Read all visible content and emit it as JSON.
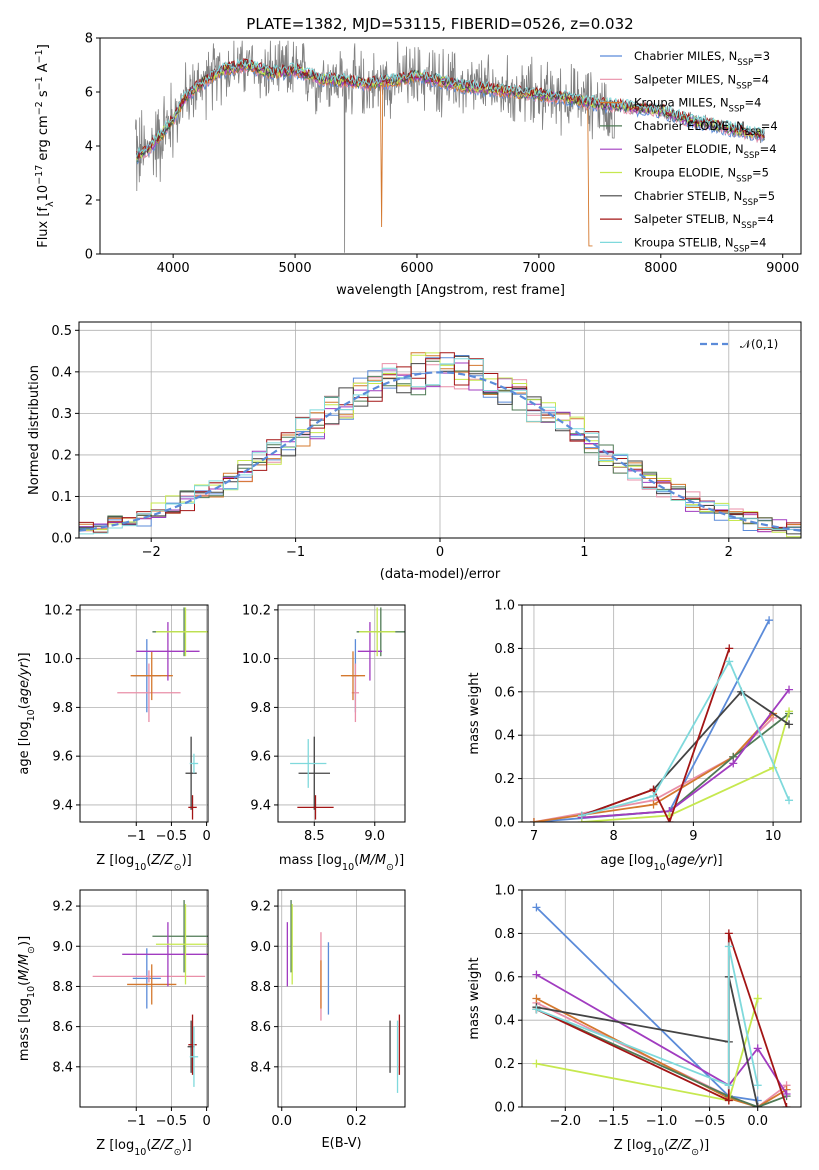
{
  "title": "PLATE=1382, MJD=53115, FIBERID=0526, z=0.032",
  "models": [
    {
      "name": "Chabrier MILES, N",
      "sub": "SSP",
      "n": "=3",
      "color": "#5b8bd9"
    },
    {
      "name": "Salpeter MILES, N",
      "sub": "SSP",
      "n": "=4",
      "color": "#e98fa8"
    },
    {
      "name": "Kroupa MILES, N",
      "sub": "SSP",
      "n": "=4",
      "color": "#d4782e"
    },
    {
      "name": "Chabrier ELODIE, N",
      "sub": "SSP",
      "n": "=4",
      "color": "#4f7a55"
    },
    {
      "name": "Salpeter ELODIE, N",
      "sub": "SSP",
      "n": "=4",
      "color": "#a13cc0"
    },
    {
      "name": "Kroupa ELODIE, N",
      "sub": "SSP",
      "n": "=5",
      "color": "#c6e84f"
    },
    {
      "name": "Chabrier STELIB, N",
      "sub": "SSP",
      "n": "=5",
      "color": "#444444"
    },
    {
      "name": "Salpeter STELIB, N",
      "sub": "SSP",
      "n": "=4",
      "color": "#a31515"
    },
    {
      "name": "Kroupa STELIB, N",
      "sub": "SSP",
      "n": "=4",
      "color": "#7fd9dc"
    }
  ],
  "chart_data": [
    {
      "id": "spectrum",
      "type": "line",
      "xlabel": "wavelength [Angstrom, rest frame]",
      "ylabel": "Flux [f_λ10^-17 erg cm^-2 s^-1 A^-1]",
      "xlim": [
        3400,
        9150
      ],
      "ylim": [
        0,
        8
      ],
      "xticks": [
        4000,
        5000,
        6000,
        7000,
        8000,
        9000
      ],
      "yticks": [
        0,
        2,
        4,
        6,
        8
      ],
      "data_color": "#808080",
      "continuum": [
        [
          3700,
          3.6
        ],
        [
          3800,
          3.9
        ],
        [
          3900,
          4.4
        ],
        [
          4000,
          5.0
        ],
        [
          4100,
          5.8
        ],
        [
          4200,
          6.2
        ],
        [
          4400,
          6.8
        ],
        [
          4600,
          7.0
        ],
        [
          4800,
          6.7
        ],
        [
          5000,
          6.8
        ],
        [
          5200,
          6.5
        ],
        [
          5400,
          6.4
        ],
        [
          5600,
          6.3
        ],
        [
          5800,
          6.4
        ],
        [
          6000,
          6.6
        ],
        [
          6200,
          6.4
        ],
        [
          6400,
          6.2
        ],
        [
          6600,
          6.1
        ],
        [
          6800,
          6.0
        ],
        [
          7000,
          5.9
        ],
        [
          7200,
          5.8
        ],
        [
          7400,
          5.6
        ],
        [
          7600,
          5.5
        ],
        [
          7800,
          5.4
        ],
        [
          8000,
          5.3
        ],
        [
          8200,
          5.0
        ],
        [
          8400,
          4.8
        ],
        [
          8600,
          4.6
        ],
        [
          8800,
          4.4
        ]
      ]
    },
    {
      "id": "residuals",
      "type": "histogram",
      "xlabel": "(data-model)/error",
      "ylabel": "Normed distribution",
      "xlim": [
        -2.5,
        2.5
      ],
      "ylim": [
        0,
        0.52
      ],
      "xticks": [
        -2,
        -1,
        0,
        1,
        2
      ],
      "yticks": [
        0.0,
        0.1,
        0.2,
        0.3,
        0.4,
        0.5
      ],
      "legend": "𝒩(0,1)",
      "gaussian_color": "#5b8bd9"
    },
    {
      "id": "age-vs-Z",
      "type": "errorbar",
      "xlabel": "Z [log10(Z/Z⊙)]",
      "ylabel": "age  [log10(age/yr)]",
      "xlim": [
        -1.8,
        0.02
      ],
      "ylim": [
        9.33,
        10.22
      ],
      "xticks": [
        -1,
        -0.5,
        0
      ],
      "yticks": [
        9.4,
        9.6,
        9.8,
        10.0,
        10.2
      ],
      "points": [
        {
          "m": 0,
          "x": -0.85,
          "y": 9.93,
          "xe": 0.2,
          "ye": 0.15
        },
        {
          "m": 1,
          "x": -0.82,
          "y": 9.86,
          "xe": 0.45,
          "ye": 0.12
        },
        {
          "m": 2,
          "x": -0.78,
          "y": 9.93,
          "xe": 0.3,
          "ye": 0.1
        },
        {
          "m": 3,
          "x": -0.32,
          "y": 10.11,
          "xe": 0.45,
          "ye": 0.1
        },
        {
          "m": 4,
          "x": -0.55,
          "y": 10.03,
          "xe": 0.45,
          "ye": 0.12
        },
        {
          "m": 5,
          "x": -0.3,
          "y": 10.11,
          "xe": 0.42,
          "ye": 0.1
        },
        {
          "m": 6,
          "x": -0.22,
          "y": 9.53,
          "xe": 0.08,
          "ye": 0.15
        },
        {
          "m": 7,
          "x": -0.2,
          "y": 9.39,
          "xe": 0.06,
          "ye": 0.05
        },
        {
          "m": 8,
          "x": -0.18,
          "y": 9.57,
          "xe": 0.06,
          "ye": 0.04
        }
      ]
    },
    {
      "id": "age-vs-mass",
      "type": "errorbar",
      "xlabel": "mass [log10(M/M⊙)]",
      "ylabel": "",
      "xlim": [
        8.2,
        9.25
      ],
      "ylim": [
        9.33,
        10.22
      ],
      "xticks": [
        8.5,
        9.0
      ],
      "yticks": [
        9.4,
        9.6,
        9.8,
        10.0,
        10.2
      ],
      "points": [
        {
          "m": 0,
          "x": 8.84,
          "y": 9.93,
          "xe": 0.03,
          "ye": 0.15
        },
        {
          "m": 1,
          "x": 8.84,
          "y": 9.86,
          "xe": 0.03,
          "ye": 0.12
        },
        {
          "m": 2,
          "x": 8.82,
          "y": 9.93,
          "xe": 0.1,
          "ye": 0.1
        },
        {
          "m": 3,
          "x": 9.05,
          "y": 10.11,
          "xe": 0.2,
          "ye": 0.1
        },
        {
          "m": 4,
          "x": 8.96,
          "y": 10.03,
          "xe": 0.1,
          "ye": 0.12
        },
        {
          "m": 5,
          "x": 9.02,
          "y": 10.11,
          "xe": 0.15,
          "ye": 0.1
        },
        {
          "m": 6,
          "x": 8.5,
          "y": 9.53,
          "xe": 0.13,
          "ye": 0.15
        },
        {
          "m": 7,
          "x": 8.51,
          "y": 9.39,
          "xe": 0.15,
          "ye": 0.05
        },
        {
          "m": 8,
          "x": 8.45,
          "y": 9.57,
          "xe": 0.15,
          "ye": 0.1
        }
      ]
    },
    {
      "id": "weight-vs-age",
      "type": "line",
      "xlabel": "age  [log10(age/yr)]",
      "ylabel": "mass weight",
      "xlim": [
        6.85,
        10.35
      ],
      "ylim": [
        0,
        1
      ],
      "xticks": [
        7,
        8,
        9,
        10
      ],
      "yticks": [
        0.0,
        0.2,
        0.4,
        0.6,
        0.8,
        1.0
      ],
      "series": [
        {
          "m": 0,
          "x": [
            7.0,
            8.7,
            9.95
          ],
          "y": [
            0.0,
            0.05,
            0.93
          ]
        },
        {
          "m": 1,
          "x": [
            7.0,
            8.5,
            9.5,
            10.0
          ],
          "y": [
            0.0,
            0.1,
            0.3,
            0.48
          ]
        },
        {
          "m": 2,
          "x": [
            7.0,
            8.5,
            9.5,
            10.0
          ],
          "y": [
            0.0,
            0.08,
            0.3,
            0.5
          ]
        },
        {
          "m": 3,
          "x": [
            7.6,
            8.7,
            9.5,
            10.2
          ],
          "y": [
            0.02,
            0.05,
            0.3,
            0.5
          ]
        },
        {
          "m": 4,
          "x": [
            7.6,
            8.7,
            9.5,
            10.2
          ],
          "y": [
            0.02,
            0.05,
            0.27,
            0.61
          ]
        },
        {
          "m": 5,
          "x": [
            7.6,
            8.7,
            10.0,
            10.2
          ],
          "y": [
            0.0,
            0.03,
            0.25,
            0.51
          ]
        },
        {
          "m": 6,
          "x": [
            7.6,
            8.5,
            9.6,
            10.2
          ],
          "y": [
            0.03,
            0.15,
            0.6,
            0.45
          ]
        },
        {
          "m": 7,
          "x": [
            7.6,
            8.5,
            8.7,
            9.45
          ],
          "y": [
            0.03,
            0.15,
            0.0,
            0.8
          ]
        },
        {
          "m": 8,
          "x": [
            7.6,
            8.5,
            9.45,
            10.2
          ],
          "y": [
            0.03,
            0.12,
            0.74,
            0.1
          ]
        }
      ]
    },
    {
      "id": "mass-vs-Z",
      "type": "errorbar",
      "xlabel": "Z [log10(Z/Z⊙)]",
      "ylabel": "mass [log10(M/M⊙)]",
      "xlim": [
        -1.8,
        0.02
      ],
      "ylim": [
        8.2,
        9.28
      ],
      "xticks": [
        -1,
        -0.5,
        0
      ],
      "yticks": [
        8.4,
        8.6,
        8.8,
        9.0,
        9.2
      ],
      "points": [
        {
          "m": 0,
          "x": -0.85,
          "y": 8.84,
          "xe": 0.2,
          "ye": 0.15
        },
        {
          "m": 1,
          "x": -0.82,
          "y": 8.85,
          "xe": 0.8,
          "ye": 0.03
        },
        {
          "m": 2,
          "x": -0.78,
          "y": 8.81,
          "xe": 0.35,
          "ye": 0.1
        },
        {
          "m": 3,
          "x": -0.32,
          "y": 9.05,
          "xe": 0.45,
          "ye": 0.18
        },
        {
          "m": 4,
          "x": -0.55,
          "y": 8.96,
          "xe": 0.65,
          "ye": 0.16
        },
        {
          "m": 5,
          "x": -0.3,
          "y": 9.01,
          "xe": 0.42,
          "ye": 0.2
        },
        {
          "m": 6,
          "x": -0.22,
          "y": 8.5,
          "xe": 0.05,
          "ye": 0.13
        },
        {
          "m": 7,
          "x": -0.2,
          "y": 8.51,
          "xe": 0.06,
          "ye": 0.15
        },
        {
          "m": 8,
          "x": -0.18,
          "y": 8.45,
          "xe": 0.06,
          "ye": 0.15
        }
      ]
    },
    {
      "id": "mass-vs-EBV",
      "type": "errorbar",
      "xlabel": "E(B-V)",
      "ylabel": "",
      "xlim": [
        -0.01,
        0.33
      ],
      "ylim": [
        8.2,
        9.28
      ],
      "xticks": [
        0.0,
        0.2
      ],
      "yticks": [
        8.4,
        8.6,
        8.8,
        9.0,
        9.2
      ],
      "points": [
        {
          "m": 0,
          "x": 0.125,
          "y": 8.84,
          "xe": 0,
          "ye": 0.18
        },
        {
          "m": 1,
          "x": 0.105,
          "y": 8.85,
          "xe": 0,
          "ye": 0.22
        },
        {
          "m": 2,
          "x": 0.105,
          "y": 8.81,
          "xe": 0,
          "ye": 0.12
        },
        {
          "m": 3,
          "x": 0.025,
          "y": 9.05,
          "xe": 0,
          "ye": 0.18
        },
        {
          "m": 4,
          "x": 0.015,
          "y": 8.96,
          "xe": 0,
          "ye": 0.16
        },
        {
          "m": 5,
          "x": 0.028,
          "y": 9.01,
          "xe": 0,
          "ye": 0.2
        },
        {
          "m": 6,
          "x": 0.29,
          "y": 8.5,
          "xe": 0,
          "ye": 0.13
        },
        {
          "m": 7,
          "x": 0.315,
          "y": 8.51,
          "xe": 0,
          "ye": 0.15
        },
        {
          "m": 8,
          "x": 0.31,
          "y": 8.45,
          "xe": 0,
          "ye": 0.18
        }
      ]
    },
    {
      "id": "weight-vs-Z",
      "type": "line",
      "xlabel": "Z [log10(Z/Z⊙)]",
      "ylabel": "mass weight",
      "xlim": [
        -2.45,
        0.45
      ],
      "ylim": [
        0,
        1
      ],
      "xticks": [
        -2.0,
        -1.5,
        -1.0,
        -0.5,
        0.0
      ],
      "yticks": [
        0.0,
        0.2,
        0.4,
        0.6,
        0.8,
        1.0
      ],
      "series": [
        {
          "m": 0,
          "x": [
            -2.3,
            -0.3,
            0.0
          ],
          "y": [
            0.92,
            0.05,
            0.03
          ]
        },
        {
          "m": 1,
          "x": [
            -2.3,
            -0.3,
            0.0,
            0.3
          ],
          "y": [
            0.48,
            0.05,
            0.0,
            0.1
          ]
        },
        {
          "m": 2,
          "x": [
            -2.3,
            -0.3,
            0.0,
            0.3
          ],
          "y": [
            0.5,
            0.04,
            0.0,
            0.08
          ]
        },
        {
          "m": 3,
          "x": [
            -2.3,
            -0.3,
            0.0,
            0.3
          ],
          "y": [
            0.45,
            0.05,
            0.0,
            0.05
          ]
        },
        {
          "m": 4,
          "x": [
            -2.3,
            -0.3,
            0.0,
            0.3
          ],
          "y": [
            0.61,
            0.1,
            0.27,
            0.06
          ]
        },
        {
          "m": 5,
          "x": [
            -2.3,
            -0.3,
            0.0,
            0.0
          ],
          "y": [
            0.2,
            0.03,
            0.5,
            0.5
          ]
        },
        {
          "m": 6,
          "x": [
            -2.3,
            -0.3,
            -0.3,
            0.0
          ],
          "y": [
            0.46,
            0.3,
            0.6,
            0.0
          ]
        },
        {
          "m": 7,
          "x": [
            -2.3,
            -0.3,
            -0.3,
            0.3
          ],
          "y": [
            0.45,
            0.03,
            0.8,
            0.0
          ]
        },
        {
          "m": 8,
          "x": [
            -2.3,
            -0.3,
            -0.3,
            0.0
          ],
          "y": [
            0.45,
            0.1,
            0.74,
            0.1
          ]
        }
      ]
    }
  ]
}
